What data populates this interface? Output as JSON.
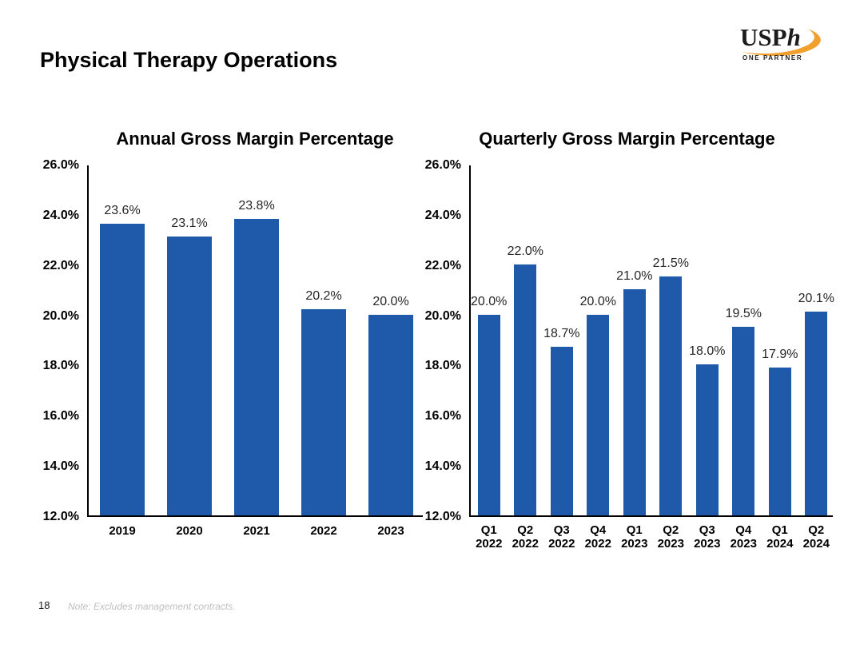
{
  "page": {
    "title": "Physical Therapy Operations",
    "page_number": "18",
    "footnote": "Note: Excludes management contracts."
  },
  "logo": {
    "name": "USPh",
    "text_main": "USP",
    "text_italic": "h",
    "tagline": "ONE PARTNER",
    "swoosh_color": "#F0A02C"
  },
  "colors": {
    "bar_fill": "#1E5AA9",
    "axis_line": "#000000",
    "data_label": "#262626",
    "tick_label": "#000000",
    "footnote_text": "#BFBFBF"
  },
  "chart_data": [
    {
      "type": "bar",
      "title": "Annual Gross Margin Percentage",
      "categories": [
        [
          "2019"
        ],
        [
          "2020"
        ],
        [
          "2021"
        ],
        [
          "2022"
        ],
        [
          "2023"
        ]
      ],
      "values": [
        23.6,
        23.1,
        23.8,
        20.2,
        20.0
      ],
      "value_labels": [
        "23.6%",
        "23.1%",
        "23.8%",
        "20.2%",
        "20.0%"
      ],
      "ylim": [
        12.0,
        26.0
      ],
      "yticks": [
        12,
        14,
        16,
        18,
        20,
        22,
        24,
        26
      ],
      "ytick_labels": [
        "12.0%",
        "14.0%",
        "16.0%",
        "18.0%",
        "20.0%",
        "22.0%",
        "24.0%",
        "26.0%"
      ],
      "xlabel": "",
      "ylabel": "",
      "grid": false,
      "legend": null
    },
    {
      "type": "bar",
      "title": "Quarterly Gross Margin Percentage",
      "categories": [
        [
          "Q1",
          "2022"
        ],
        [
          "Q2",
          "2022"
        ],
        [
          "Q3",
          "2022"
        ],
        [
          "Q4",
          "2022"
        ],
        [
          "Q1",
          "2023"
        ],
        [
          "Q2",
          "2023"
        ],
        [
          "Q3",
          "2023"
        ],
        [
          "Q4",
          "2023"
        ],
        [
          "Q1",
          "2024"
        ],
        [
          "Q2",
          "2024"
        ]
      ],
      "values": [
        20.0,
        22.0,
        18.7,
        20.0,
        21.0,
        21.5,
        18.0,
        19.5,
        17.9,
        20.1
      ],
      "value_labels": [
        "20.0%",
        "22.0%",
        "18.7%",
        "20.0%",
        "21.0%",
        "21.5%",
        "18.0%",
        "19.5%",
        "17.9%",
        "20.1%"
      ],
      "ylim": [
        12.0,
        26.0
      ],
      "yticks": [
        12,
        14,
        16,
        18,
        20,
        22,
        24,
        26
      ],
      "ytick_labels": [
        "12.0%",
        "14.0%",
        "16.0%",
        "18.0%",
        "20.0%",
        "22.0%",
        "24.0%",
        "26.0%"
      ],
      "xlabel": "",
      "ylabel": "",
      "grid": false,
      "legend": null
    }
  ]
}
